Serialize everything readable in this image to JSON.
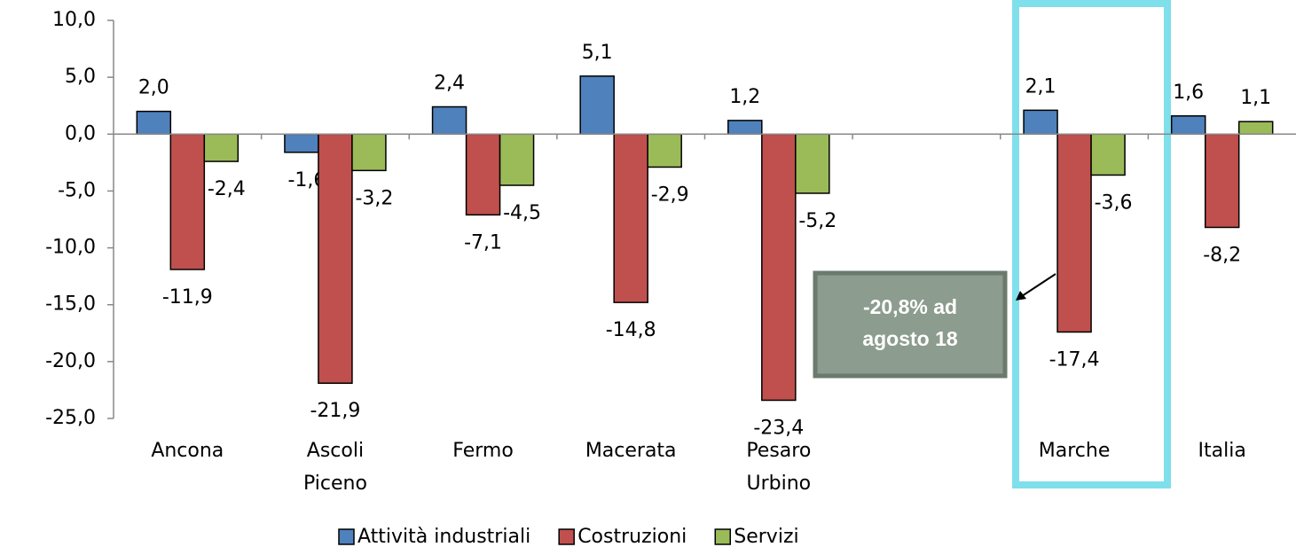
{
  "chart_data": {
    "type": "bar",
    "categories": [
      "Ancona",
      "Ascoli Piceno",
      "Fermo",
      "Macerata",
      "Pesaro Urbino",
      null,
      "Marche",
      "Italia"
    ],
    "series": [
      {
        "name": "Attività industriali",
        "color": "#4f81bd",
        "values": [
          2.0,
          -1.6,
          2.4,
          5.1,
          1.2,
          null,
          2.1,
          1.6
        ],
        "value_labels": [
          "2,0",
          "-1,6",
          "2,4",
          "5,1",
          "1,2",
          null,
          "2,1",
          "1,6"
        ]
      },
      {
        "name": "Costruzioni",
        "color": "#c0504d",
        "values": [
          -11.9,
          -21.9,
          -7.1,
          -14.8,
          -23.4,
          null,
          -17.4,
          -8.2
        ],
        "value_labels": [
          "-11,9",
          "-21,9",
          "-7,1",
          "-14,8",
          "-23,4",
          null,
          "-17,4",
          "-8,2"
        ]
      },
      {
        "name": "Servizi",
        "color": "#9bbb59",
        "values": [
          -2.4,
          -3.2,
          -4.5,
          -2.9,
          -5.2,
          null,
          -3.6,
          1.1
        ],
        "value_labels": [
          "-2,4",
          "-3,2",
          "-4,5",
          "-2,9",
          "-5,2",
          null,
          "-3,6",
          "1,1"
        ]
      }
    ],
    "ylim": [
      -25,
      10
    ],
    "yticks": [
      {
        "value": -25,
        "label": "-25,0"
      },
      {
        "value": -20,
        "label": "-20,0"
      },
      {
        "value": -15,
        "label": "-15,0"
      },
      {
        "value": -10,
        "label": "-10,0"
      },
      {
        "value": -5,
        "label": "-5,0"
      },
      {
        "value": 0,
        "label": "0,0"
      },
      {
        "value": 5,
        "label": "5,0"
      },
      {
        "value": 10,
        "label": "10,0"
      }
    ],
    "annotation": [
      "-20,8% ad",
      "agosto 18"
    ],
    "legend": "bottom"
  }
}
